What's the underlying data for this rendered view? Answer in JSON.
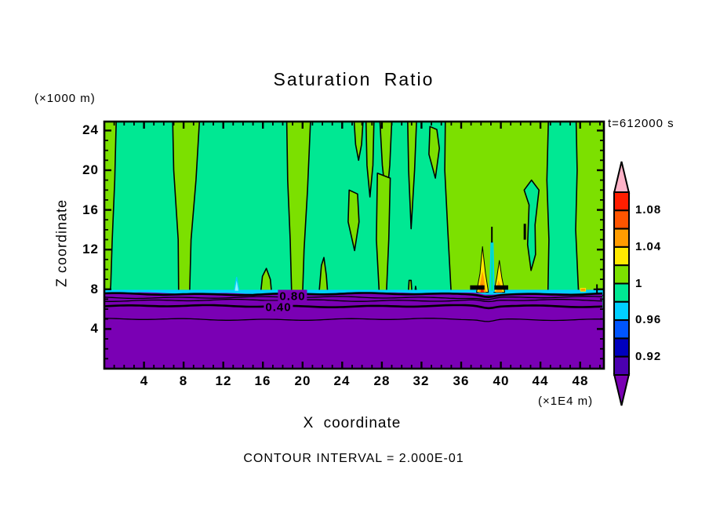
{
  "figure": {
    "footnote": "CONTOUR INTERVAL = 2.000E-01"
  },
  "colors": {
    "background": "#FFFFFF",
    "ink": "#000000",
    "spring_green": "#00E893",
    "chartreuse": "#7CE000",
    "purple": "#7A00B4",
    "cyan": "#00CFFF",
    "light_cyan": "#8CF0FF",
    "yellow": "#FFE900",
    "orange": "#FF9C00",
    "orange_red": "#FF5500",
    "red": "#FF1E00",
    "blue": "#0055FF",
    "navy": "#0000BE",
    "indigo": "#4B00B0",
    "pink": "#FFB3C8"
  },
  "chart_data": {
    "type": "heatmap",
    "subtype": "filled-contour",
    "title": "Saturation Ratio",
    "time_label": "t=612000 s",
    "xlabel": "X coordinate",
    "x_units": "(×1E4 m)",
    "ylabel": "Z coordinate",
    "y_units": "(×1000 m)",
    "x_ticks": [
      4,
      8,
      12,
      16,
      20,
      24,
      28,
      32,
      36,
      40,
      44,
      48
    ],
    "y_ticks": [
      4,
      8,
      12,
      16,
      20,
      24
    ],
    "xlim": [
      0,
      50.4
    ],
    "ylim": [
      0,
      24.9
    ],
    "minor_tick_step": 1,
    "grid": false,
    "contour_interval": "2.000E-01",
    "colorbar": {
      "position": "right",
      "tick_labels": [
        "1.08",
        "1.04",
        "1",
        "0.96",
        "0.92"
      ],
      "tick_values": [
        1.08,
        1.04,
        1.0,
        0.96,
        0.92
      ],
      "segment_values_top_to_bottom": [
        [
          1.08,
          1.1
        ],
        [
          1.06,
          1.08
        ],
        [
          1.04,
          1.06
        ],
        [
          1.02,
          1.04
        ],
        [
          1.0,
          1.02
        ],
        [
          0.98,
          1.0
        ],
        [
          0.96,
          0.98
        ],
        [
          0.94,
          0.96
        ],
        [
          0.92,
          0.94
        ],
        [
          0.9,
          0.92
        ]
      ],
      "segment_colors": [
        "#FF1E00",
        "#FF5500",
        "#FF9C00",
        "#FFE900",
        "#7CE000",
        "#00E893",
        "#00CFFF",
        "#0055FF",
        "#0000BE",
        "#4B00B0"
      ],
      "over_color": "#FFB3C8",
      "under_color": "#7A00B4"
    },
    "field_summary": {
      "upper_region": "saturation ratio 0.98-1.00 (spring green) above z~7.8 with chartreuse streaks of 1.00-1.02",
      "lower_region": "saturation ratio below 0.90 (purple) beneath z~7.6, decreasing toward ground with 0.2-interval line contours",
      "inversion_layer": "thin cyan band (0.96-0.98) along z~7.6-7.9 across the full domain",
      "plumes": "supersaturated plumes (1.02-1.10, yellow/orange/red) near x=38 and x=40 reaching z~12",
      "cool_spike": "small 0.96-0.98 cyan spike at x~13.4 just above the inversion"
    },
    "contour_line_labels": [
      {
        "text": "0.80",
        "x": 19.0,
        "z": 7.3
      },
      {
        "text": "0.40",
        "x": 17.6,
        "z": 6.2
      }
    ],
    "features": {
      "contour_lines": [
        {
          "z": 7.52,
          "w": 2.6
        },
        {
          "z": 7.18,
          "w": 1.3
        },
        {
          "z": 6.88,
          "w": 1.3
        },
        {
          "z": 6.3,
          "w": 2.6
        },
        {
          "z": 4.97,
          "w": 1.3
        }
      ],
      "streaks": [
        [
          [
            -0.1,
            24.95
          ],
          [
            1.2,
            24.95
          ],
          [
            1.05,
            19
          ],
          [
            0.8,
            13
          ],
          [
            0.65,
            8.4
          ],
          [
            0.55,
            7.4
          ],
          [
            -0.1,
            7.4
          ]
        ],
        [
          [
            6.9,
            24.95
          ],
          [
            9.6,
            24.95
          ],
          [
            9.25,
            19
          ],
          [
            8.75,
            13
          ],
          [
            8.6,
            7.4
          ],
          [
            7.5,
            7.4
          ],
          [
            7.45,
            13
          ],
          [
            7.0,
            20
          ]
        ],
        [
          [
            15.75,
            7.4
          ],
          [
            15.95,
            9.3
          ],
          [
            16.35,
            10.1
          ],
          [
            16.75,
            9.0
          ],
          [
            16.9,
            7.4
          ]
        ],
        [
          [
            18.4,
            24.95
          ],
          [
            20.8,
            24.95
          ],
          [
            20.5,
            18
          ],
          [
            20.15,
            12
          ],
          [
            20.0,
            7.4
          ],
          [
            18.9,
            7.4
          ],
          [
            18.75,
            13
          ],
          [
            18.5,
            19
          ]
        ],
        [
          [
            21.65,
            7.4
          ],
          [
            21.9,
            10.4
          ],
          [
            22.15,
            11.2
          ],
          [
            22.4,
            9.4
          ],
          [
            22.55,
            7.4
          ]
        ],
        [
          [
            25.2,
            24.95
          ],
          [
            26.1,
            24.95
          ],
          [
            25.95,
            22.6
          ],
          [
            25.65,
            21.0
          ],
          [
            25.35,
            22.6
          ]
        ],
        [
          [
            26.4,
            24.95
          ],
          [
            27.2,
            24.95
          ],
          [
            27.1,
            20.5
          ],
          [
            26.8,
            17.3
          ],
          [
            26.5,
            20.5
          ]
        ],
        [
          [
            27.8,
            24.95
          ],
          [
            29.0,
            24.95
          ],
          [
            28.8,
            20.5
          ],
          [
            28.45,
            16.7
          ],
          [
            28.05,
            20.5
          ]
        ],
        [
          [
            24.7,
            18.0
          ],
          [
            25.55,
            17.6
          ],
          [
            25.7,
            14.8
          ],
          [
            25.25,
            11.9
          ],
          [
            24.6,
            14.8
          ]
        ],
        [
          [
            27.55,
            19.7
          ],
          [
            28.85,
            19.2
          ],
          [
            28.7,
            13
          ],
          [
            28.45,
            7.4
          ],
          [
            27.75,
            7.4
          ],
          [
            27.45,
            13
          ]
        ],
        [
          [
            30.6,
            24.95
          ],
          [
            31.5,
            24.95
          ],
          [
            31.3,
            20
          ],
          [
            30.95,
            14.1
          ],
          [
            30.7,
            20
          ]
        ],
        [
          [
            32.85,
            24.4
          ],
          [
            33.55,
            24.1
          ],
          [
            33.8,
            22.2
          ],
          [
            33.4,
            19.2
          ],
          [
            32.75,
            21.6
          ]
        ],
        [
          [
            30.65,
            7.4
          ],
          [
            30.75,
            8.9
          ],
          [
            30.95,
            8.9
          ],
          [
            31.05,
            7.4
          ]
        ],
        [
          [
            31.3,
            7.4
          ],
          [
            31.4,
            8.3
          ],
          [
            31.55,
            7.4
          ]
        ],
        [
          [
            34.4,
            24.95
          ],
          [
            44.8,
            24.95
          ],
          [
            44.65,
            19
          ],
          [
            44.85,
            13
          ],
          [
            44.75,
            7.4
          ],
          [
            35.0,
            7.4
          ],
          [
            34.65,
            14
          ],
          [
            34.35,
            20
          ]
        ],
        [
          [
            47.6,
            24.95
          ],
          [
            50.5,
            24.95
          ],
          [
            50.5,
            7.4
          ],
          [
            47.85,
            7.4
          ],
          [
            47.55,
            14
          ],
          [
            47.7,
            20
          ]
        ]
      ],
      "green_inlets": [
        [
          [
            42.35,
            18.0
          ],
          [
            42.85,
            16.5
          ],
          [
            42.7,
            12.5
          ],
          [
            43.05,
            9.9
          ],
          [
            43.5,
            11.5
          ],
          [
            43.45,
            14.5
          ],
          [
            43.85,
            18.0
          ],
          [
            43.1,
            19.0
          ]
        ]
      ],
      "flames_yellow": [
        [
          [
            37.55,
            7.7
          ],
          [
            37.9,
            9.6
          ],
          [
            38.15,
            12.3
          ],
          [
            38.45,
            9.6
          ],
          [
            38.75,
            7.7
          ]
        ],
        [
          [
            39.3,
            7.7
          ],
          [
            39.6,
            9.2
          ],
          [
            39.85,
            10.9
          ],
          [
            40.1,
            9.2
          ],
          [
            40.4,
            7.7
          ]
        ]
      ],
      "flames_orange": [
        [
          [
            37.75,
            7.7
          ],
          [
            38.05,
            9.3
          ],
          [
            38.15,
            9.8
          ],
          [
            38.3,
            9.1
          ],
          [
            38.5,
            7.7
          ]
        ],
        [
          [
            39.5,
            7.7
          ],
          [
            39.75,
            8.9
          ],
          [
            39.95,
            8.5
          ],
          [
            40.15,
            7.7
          ]
        ]
      ],
      "flames_red": [
        [
          [
            37.95,
            7.7
          ],
          [
            38.12,
            8.6
          ],
          [
            38.3,
            7.7
          ]
        ]
      ],
      "teal_spike": [
        [
          38.9,
          7.8
        ],
        [
          39.02,
          12.7
        ],
        [
          39.2,
          12.7
        ],
        [
          39.32,
          7.8
        ]
      ],
      "black_blobs": [
        [
          [
            36.9,
            8.4
          ],
          [
            38.35,
            8.4
          ],
          [
            38.35,
            7.95
          ],
          [
            36.9,
            7.95
          ]
        ],
        [
          [
            39.35,
            8.4
          ],
          [
            40.75,
            8.4
          ],
          [
            40.75,
            7.95
          ],
          [
            39.35,
            7.95
          ]
        ]
      ],
      "cyan_spike": [
        [
          13.1,
          7.8
        ],
        [
          13.35,
          9.2
        ],
        [
          13.6,
          7.8
        ]
      ],
      "right_spot": [
        [
          48.05,
          8.1
        ],
        [
          48.55,
          8.1
        ],
        [
          48.55,
          7.8
        ],
        [
          48.05,
          7.8
        ]
      ],
      "black_marks": [
        {
          "x1": 39.1,
          "z1": 12.7,
          "x2": 39.1,
          "z2": 14.3,
          "w": 2
        },
        {
          "x1": 42.42,
          "z1": 13.0,
          "x2": 42.42,
          "z2": 14.6,
          "w": 3
        },
        {
          "x1": 49.7,
          "z1": 7.6,
          "x2": 49.7,
          "z2": 8.5,
          "w": 2
        },
        {
          "x1": 49.35,
          "z1": 8.0,
          "x2": 50.05,
          "z2": 8.0,
          "w": 2
        }
      ],
      "inversion_band": {
        "top_z": 7.95,
        "bottom_z": 7.45
      },
      "purple_top_z": 7.58
    }
  }
}
